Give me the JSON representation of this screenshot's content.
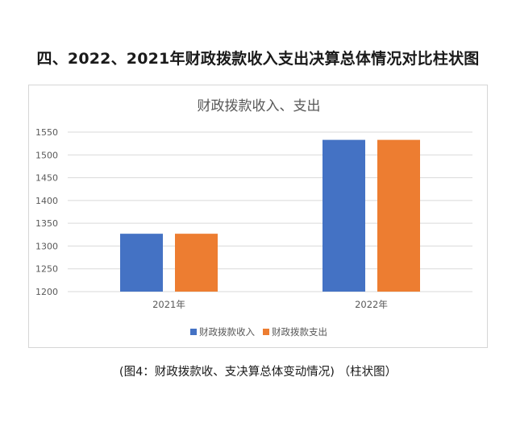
{
  "heading": "四、2022、2021年财政拨款收入支出决算总体情况对比柱状图",
  "caption": "(图4：财政拨款收、支决算总体变动情况) （柱状图）",
  "chart_data": {
    "type": "bar",
    "title": "财政拨款收入、支出",
    "categories": [
      "2021年",
      "2022年"
    ],
    "series": [
      {
        "name": "财政拨款收入",
        "color": "#4472C4",
        "values": [
          1327,
          1533
        ]
      },
      {
        "name": "财政拨款支出",
        "color": "#ED7D31",
        "values": [
          1327,
          1533
        ]
      }
    ],
    "yticks": [
      "1200",
      "1250",
      "1300",
      "1350",
      "1400",
      "1450",
      "1500",
      "1550"
    ],
    "ylim": [
      1200,
      1550
    ],
    "grid": true,
    "legend": "bottom"
  }
}
